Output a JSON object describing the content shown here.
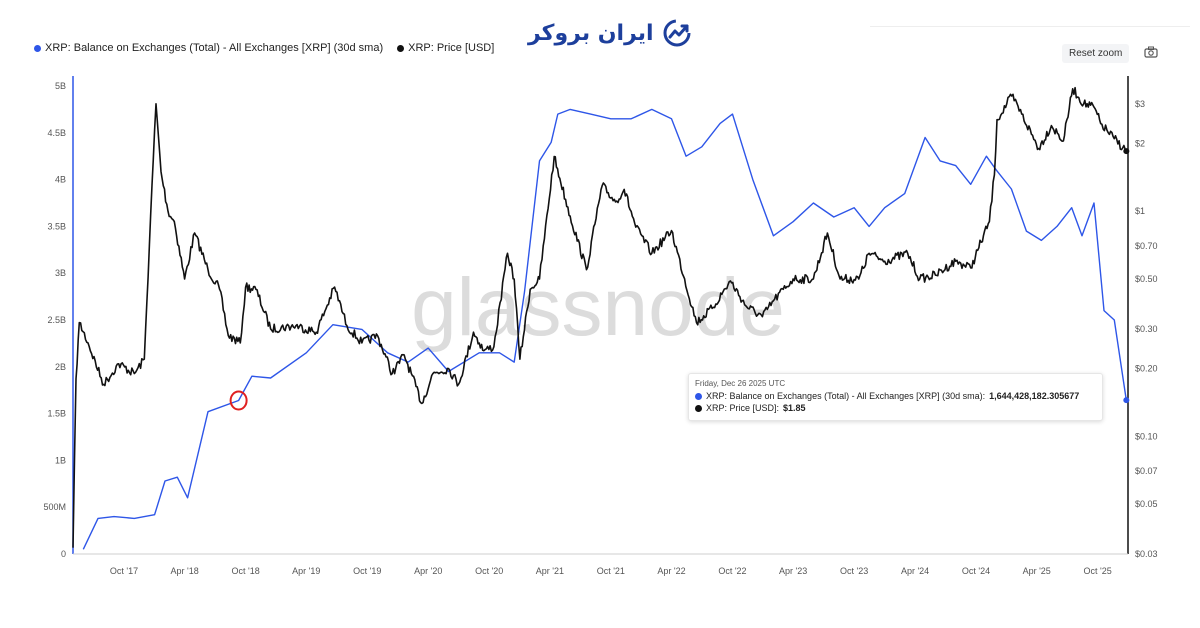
{
  "logo": {
    "text": "ایران بروکر",
    "icon": "chart-up-logo-icon",
    "color": "#1d3f9c"
  },
  "toolbar": {
    "reset_zoom": "Reset zoom",
    "camera_icon": "camera-icon"
  },
  "watermark": "glassnode",
  "tooltip": {
    "date": "Friday, Dec 26 2025 UTC",
    "balance_label": "XRP: Balance on Exchanges (Total) - All Exchanges [XRP] (30d sma):",
    "balance_value": "1,644,428,182.305677",
    "price_label": "XRP: Price [USD]:",
    "price_value": "$1.85"
  },
  "chart_data": {
    "type": "line",
    "colors": {
      "balance": "#2e56e8",
      "price": "#111111",
      "highlight": "#e02020"
    },
    "x_ticks": [
      "Oct '17",
      "Apr '18",
      "Oct '18",
      "Apr '19",
      "Oct '19",
      "Apr '20",
      "Oct '20",
      "Apr '21",
      "Oct '21",
      "Apr '22",
      "Oct '22",
      "Apr '23",
      "Oct '23",
      "Apr '24",
      "Oct '24",
      "Apr '25",
      "Oct '25"
    ],
    "y_left_ticks": [
      "0",
      "500M",
      "1B",
      "1.5B",
      "2B",
      "2.5B",
      "3B",
      "3.5B",
      "4B",
      "4.5B",
      "5B"
    ],
    "y_left_range": [
      0,
      5000000000
    ],
    "y_right_ticks": [
      {
        "label": "$3",
        "value": 3
      },
      {
        "label": "$2",
        "value": 2
      },
      {
        "label": "$1",
        "value": 1
      },
      {
        "label": "$0.70",
        "value": 0.7
      },
      {
        "label": "$0.50",
        "value": 0.5
      },
      {
        "label": "$0.30",
        "value": 0.3
      },
      {
        "label": "$0.20",
        "value": 0.2
      },
      {
        "label": "$0.10",
        "value": 0.1
      },
      {
        "label": "$0.07",
        "value": 0.07
      },
      {
        "label": "$0.05",
        "value": 0.05
      },
      {
        "label": "$0.03",
        "value": 0.03
      }
    ],
    "y_right_scale": "log",
    "y_right_range": [
      0.03,
      3.6
    ],
    "x_range": [
      "2017-05-01",
      "2025-12-31"
    ],
    "series": [
      {
        "name": "XRP: Balance on Exchanges (Total) - All Exchanges [XRP] (30d sma)",
        "axis": "left",
        "points": [
          [
            "2017-06-01",
            50000000
          ],
          [
            "2017-07-15",
            380000000
          ],
          [
            "2017-09-01",
            400000000
          ],
          [
            "2017-11-01",
            380000000
          ],
          [
            "2018-01-01",
            420000000
          ],
          [
            "2018-02-01",
            780000000
          ],
          [
            "2018-03-10",
            820000000
          ],
          [
            "2018-04-10",
            600000000
          ],
          [
            "2018-06-10",
            1520000000
          ],
          [
            "2018-09-10",
            1640000000
          ],
          [
            "2018-10-20",
            1900000000
          ],
          [
            "2018-12-15",
            1880000000
          ],
          [
            "2019-04-01",
            2150000000
          ],
          [
            "2019-06-20",
            2450000000
          ],
          [
            "2019-09-15",
            2400000000
          ],
          [
            "2019-12-01",
            2150000000
          ],
          [
            "2020-02-01",
            2050000000
          ],
          [
            "2020-04-01",
            2200000000
          ],
          [
            "2020-06-01",
            1950000000
          ],
          [
            "2020-09-01",
            2150000000
          ],
          [
            "2020-11-01",
            2150000000
          ],
          [
            "2020-12-15",
            2050000000
          ],
          [
            "2021-01-15",
            2800000000
          ],
          [
            "2021-03-01",
            4200000000
          ],
          [
            "2021-04-05",
            4400000000
          ],
          [
            "2021-04-25",
            4700000000
          ],
          [
            "2021-06-01",
            4750000000
          ],
          [
            "2021-08-01",
            4700000000
          ],
          [
            "2021-10-01",
            4650000000
          ],
          [
            "2021-12-01",
            4650000000
          ],
          [
            "2022-02-01",
            4750000000
          ],
          [
            "2022-04-01",
            4650000000
          ],
          [
            "2022-05-15",
            4250000000
          ],
          [
            "2022-07-01",
            4350000000
          ],
          [
            "2022-08-25",
            4600000000
          ],
          [
            "2022-10-01",
            4700000000
          ],
          [
            "2022-12-01",
            4000000000
          ],
          [
            "2023-02-01",
            3400000000
          ],
          [
            "2023-04-01",
            3550000000
          ],
          [
            "2023-06-01",
            3750000000
          ],
          [
            "2023-08-01",
            3600000000
          ],
          [
            "2023-10-01",
            3700000000
          ],
          [
            "2023-11-15",
            3500000000
          ],
          [
            "2024-01-01",
            3700000000
          ],
          [
            "2024-03-01",
            3850000000
          ],
          [
            "2024-05-01",
            4450000000
          ],
          [
            "2024-06-15",
            4200000000
          ],
          [
            "2024-08-01",
            4150000000
          ],
          [
            "2024-09-15",
            3950000000
          ],
          [
            "2024-11-01",
            4250000000
          ],
          [
            "2024-12-01",
            4100000000
          ],
          [
            "2025-01-15",
            3900000000
          ],
          [
            "2025-03-01",
            3450000000
          ],
          [
            "2025-04-15",
            3350000000
          ],
          [
            "2025-06-01",
            3500000000
          ],
          [
            "2025-07-15",
            3700000000
          ],
          [
            "2025-08-15",
            3400000000
          ],
          [
            "2025-09-20",
            3750000000
          ],
          [
            "2025-10-20",
            2600000000
          ],
          [
            "2025-11-20",
            2500000000
          ],
          [
            "2025-12-26",
            1644428182
          ]
        ]
      },
      {
        "name": "XRP: Price [USD]",
        "axis": "right",
        "points": [
          [
            "2017-05-01",
            0.032
          ],
          [
            "2017-05-10",
            0.18
          ],
          [
            "2017-05-20",
            0.32
          ],
          [
            "2017-06-15",
            0.26
          ],
          [
            "2017-08-01",
            0.17
          ],
          [
            "2017-09-15",
            0.21
          ],
          [
            "2017-11-01",
            0.19
          ],
          [
            "2017-12-01",
            0.22
          ],
          [
            "2017-12-20",
            0.95
          ],
          [
            "2018-01-05",
            3.0
          ],
          [
            "2018-01-20",
            1.5
          ],
          [
            "2018-02-10",
            1.0
          ],
          [
            "2018-03-01",
            0.9
          ],
          [
            "2018-04-01",
            0.5
          ],
          [
            "2018-05-01",
            0.8
          ],
          [
            "2018-06-10",
            0.55
          ],
          [
            "2018-07-15",
            0.45
          ],
          [
            "2018-08-10",
            0.28
          ],
          [
            "2018-09-15",
            0.26
          ],
          [
            "2018-10-01",
            0.46
          ],
          [
            "2018-11-01",
            0.45
          ],
          [
            "2018-12-15",
            0.3
          ],
          [
            "2019-03-01",
            0.31
          ],
          [
            "2019-05-01",
            0.29
          ],
          [
            "2019-06-25",
            0.46
          ],
          [
            "2019-08-01",
            0.31
          ],
          [
            "2019-09-15",
            0.26
          ],
          [
            "2019-11-01",
            0.28
          ],
          [
            "2019-12-15",
            0.19
          ],
          [
            "2020-01-20",
            0.23
          ],
          [
            "2020-03-13",
            0.14
          ],
          [
            "2020-04-15",
            0.19
          ],
          [
            "2020-06-01",
            0.2
          ],
          [
            "2020-07-01",
            0.17
          ],
          [
            "2020-08-15",
            0.29
          ],
          [
            "2020-09-15",
            0.24
          ],
          [
            "2020-10-15",
            0.25
          ],
          [
            "2020-11-25",
            0.65
          ],
          [
            "2020-12-15",
            0.5
          ],
          [
            "2021-01-01",
            0.22
          ],
          [
            "2021-02-01",
            0.45
          ],
          [
            "2021-03-01",
            0.5
          ],
          [
            "2021-04-14",
            1.75
          ],
          [
            "2021-05-01",
            1.4
          ],
          [
            "2021-06-01",
            0.95
          ],
          [
            "2021-07-20",
            0.55
          ],
          [
            "2021-09-05",
            1.3
          ],
          [
            "2021-10-15",
            1.1
          ],
          [
            "2021-11-10",
            1.25
          ],
          [
            "2021-12-15",
            0.85
          ],
          [
            "2022-02-01",
            0.65
          ],
          [
            "2022-04-01",
            0.82
          ],
          [
            "2022-06-15",
            0.32
          ],
          [
            "2022-08-01",
            0.37
          ],
          [
            "2022-09-25",
            0.49
          ],
          [
            "2022-11-10",
            0.38
          ],
          [
            "2022-12-30",
            0.34
          ],
          [
            "2023-02-01",
            0.4
          ],
          [
            "2023-04-01",
            0.5
          ],
          [
            "2023-06-01",
            0.5
          ],
          [
            "2023-07-13",
            0.8
          ],
          [
            "2023-08-20",
            0.5
          ],
          [
            "2023-10-15",
            0.5
          ],
          [
            "2023-11-15",
            0.65
          ],
          [
            "2024-01-01",
            0.6
          ],
          [
            "2024-03-10",
            0.65
          ],
          [
            "2024-04-15",
            0.5
          ],
          [
            "2024-06-01",
            0.52
          ],
          [
            "2024-08-01",
            0.6
          ],
          [
            "2024-09-15",
            0.56
          ],
          [
            "2024-11-10",
            0.9
          ],
          [
            "2024-11-25",
            1.45
          ],
          [
            "2024-12-03",
            2.55
          ],
          [
            "2025-01-16",
            3.25
          ],
          [
            "2025-02-15",
            2.7
          ],
          [
            "2025-04-07",
            1.9
          ],
          [
            "2025-05-15",
            2.4
          ],
          [
            "2025-06-20",
            2.05
          ],
          [
            "2025-07-18",
            3.5
          ],
          [
            "2025-08-20",
            3.0
          ],
          [
            "2025-09-20",
            2.9
          ],
          [
            "2025-10-10",
            2.45
          ],
          [
            "2025-11-20",
            2.1
          ],
          [
            "2025-12-26",
            1.85
          ]
        ]
      }
    ]
  }
}
